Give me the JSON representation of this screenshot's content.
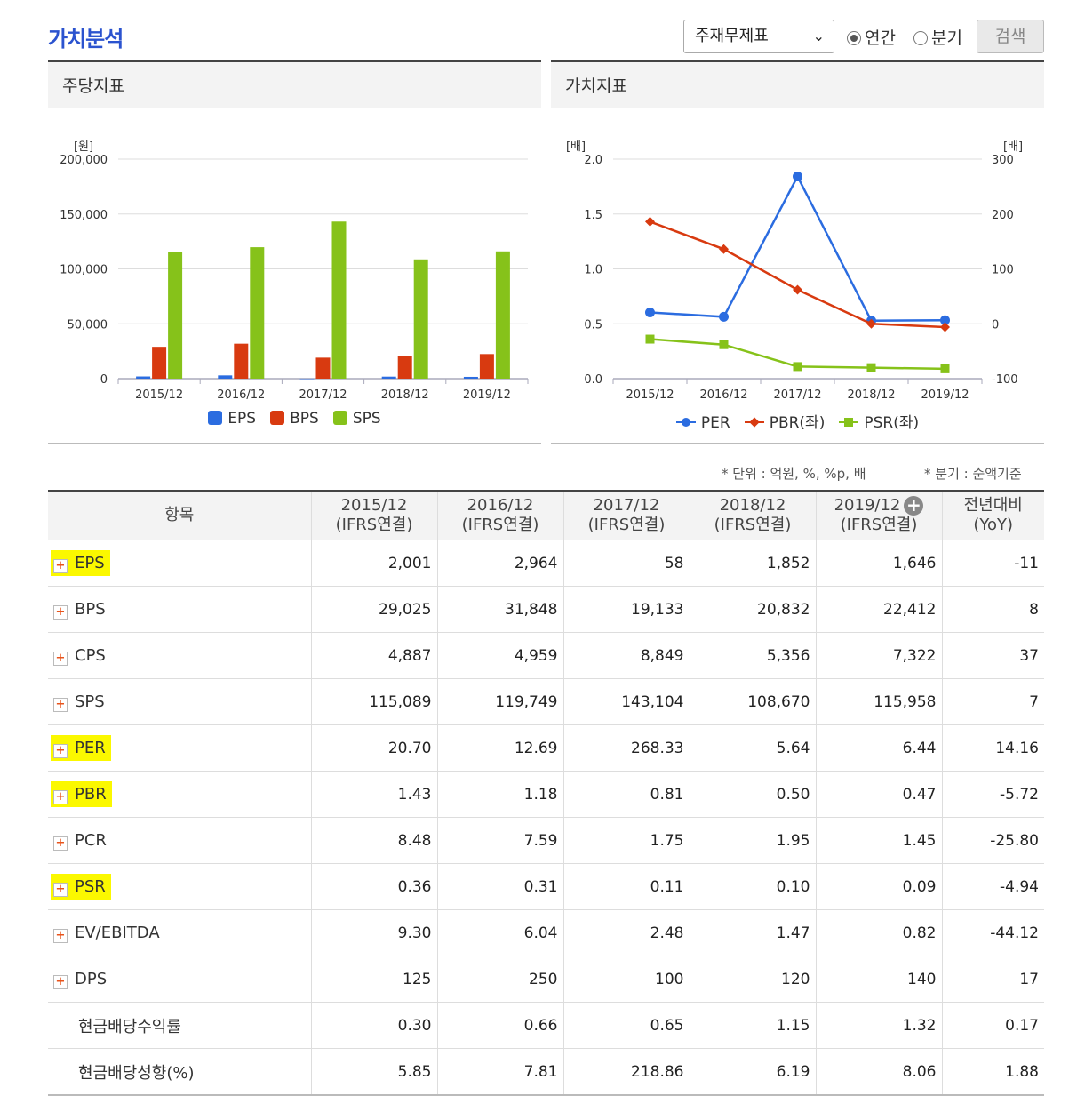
{
  "title": "가치분석",
  "controls": {
    "select_value": "주재무제표",
    "radio_annual": "연간",
    "radio_quarter": "분기",
    "search_label": "검색"
  },
  "panels": {
    "per_share_title": "주당지표",
    "value_title": "가치지표"
  },
  "chart_data": [
    {
      "type": "bar",
      "title": "주당지표",
      "ylabel": "[원]",
      "ylim": [
        0,
        200000
      ],
      "yticks": [
        "0",
        "50,000",
        "100,000",
        "150,000",
        "200,000"
      ],
      "categories": [
        "2015/12",
        "2016/12",
        "2017/12",
        "2018/12",
        "2019/12"
      ],
      "series": [
        {
          "name": "EPS",
          "color": "#2b6ce0",
          "values": [
            2001,
            2964,
            58,
            1852,
            1646
          ]
        },
        {
          "name": "BPS",
          "color": "#d83a10",
          "values": [
            29025,
            31848,
            19133,
            20832,
            22412
          ]
        },
        {
          "name": "SPS",
          "color": "#86c21a",
          "values": [
            115089,
            119749,
            143104,
            108670,
            115958
          ]
        }
      ],
      "legend": "bottom",
      "grid": true
    },
    {
      "type": "line",
      "title": "가치지표",
      "ylabel_left": "[배]",
      "ylabel_right": "[배]",
      "ylim_left": [
        0,
        2
      ],
      "ylim_right": [
        -100,
        300
      ],
      "yticks_left": [
        "0.0",
        "0.5",
        "1.0",
        "1.5",
        "2.0"
      ],
      "yticks_right": [
        "-100",
        "0",
        "100",
        "200",
        "300"
      ],
      "categories": [
        "2015/12",
        "2016/12",
        "2017/12",
        "2018/12",
        "2019/12"
      ],
      "series": [
        {
          "name": "PER",
          "axis": "right",
          "color": "#2b6ce0",
          "marker": "circle",
          "values": [
            20.7,
            12.69,
            268.33,
            5.64,
            6.44
          ]
        },
        {
          "name": "PBR(좌)",
          "axis": "left",
          "color": "#d83a10",
          "marker": "diamond",
          "values": [
            1.43,
            1.18,
            0.81,
            0.5,
            0.47
          ]
        },
        {
          "name": "PSR(좌)",
          "axis": "left",
          "color": "#86c21a",
          "marker": "square",
          "values": [
            0.36,
            0.31,
            0.11,
            0.1,
            0.09
          ]
        }
      ],
      "legend": "bottom",
      "grid": true
    }
  ],
  "notes": {
    "unit": "* 단위 : 억원, %, %p, 배",
    "quarter": "* 분기 : 순액기준"
  },
  "table": {
    "header_item": "항목",
    "columns": [
      {
        "period": "2015/12",
        "basis": "(IFRS연결)"
      },
      {
        "period": "2016/12",
        "basis": "(IFRS연결)"
      },
      {
        "period": "2017/12",
        "basis": "(IFRS연결)"
      },
      {
        "period": "2018/12",
        "basis": "(IFRS연결)"
      },
      {
        "period": "2019/12",
        "basis": "(IFRS연결)"
      }
    ],
    "yoy_title": "전년대비",
    "yoy_sub": "(YoY)",
    "rows": [
      {
        "label": "EPS",
        "values": [
          "2,001",
          "2,964",
          "58",
          "1,852",
          "1,646"
        ],
        "yoy": "-11"
      },
      {
        "label": "BPS",
        "values": [
          "29,025",
          "31,848",
          "19,133",
          "20,832",
          "22,412"
        ],
        "yoy": "8"
      },
      {
        "label": "CPS",
        "values": [
          "4,887",
          "4,959",
          "8,849",
          "5,356",
          "7,322"
        ],
        "yoy": "37"
      },
      {
        "label": "SPS",
        "values": [
          "115,089",
          "119,749",
          "143,104",
          "108,670",
          "115,958"
        ],
        "yoy": "7"
      },
      {
        "label": "PER",
        "values": [
          "20.70",
          "12.69",
          "268.33",
          "5.64",
          "6.44"
        ],
        "yoy": "14.16"
      },
      {
        "label": "PBR",
        "values": [
          "1.43",
          "1.18",
          "0.81",
          "0.50",
          "0.47"
        ],
        "yoy": "-5.72"
      },
      {
        "label": "PCR",
        "values": [
          "8.48",
          "7.59",
          "1.75",
          "1.95",
          "1.45"
        ],
        "yoy": "-25.80"
      },
      {
        "label": "PSR",
        "values": [
          "0.36",
          "0.31",
          "0.11",
          "0.10",
          "0.09"
        ],
        "yoy": "-4.94"
      },
      {
        "label": "EV/EBITDA",
        "values": [
          "9.30",
          "6.04",
          "2.48",
          "1.47",
          "0.82"
        ],
        "yoy": "-44.12"
      },
      {
        "label": "DPS",
        "values": [
          "125",
          "250",
          "100",
          "120",
          "140"
        ],
        "yoy": "17"
      },
      {
        "label": "현금배당수익률",
        "values": [
          "0.30",
          "0.66",
          "0.65",
          "1.15",
          "1.32"
        ],
        "yoy": "0.17"
      },
      {
        "label": "현금배당성향(%)",
        "values": [
          "5.85",
          "7.81",
          "218.86",
          "6.19",
          "8.06"
        ],
        "yoy": "1.88"
      }
    ]
  }
}
